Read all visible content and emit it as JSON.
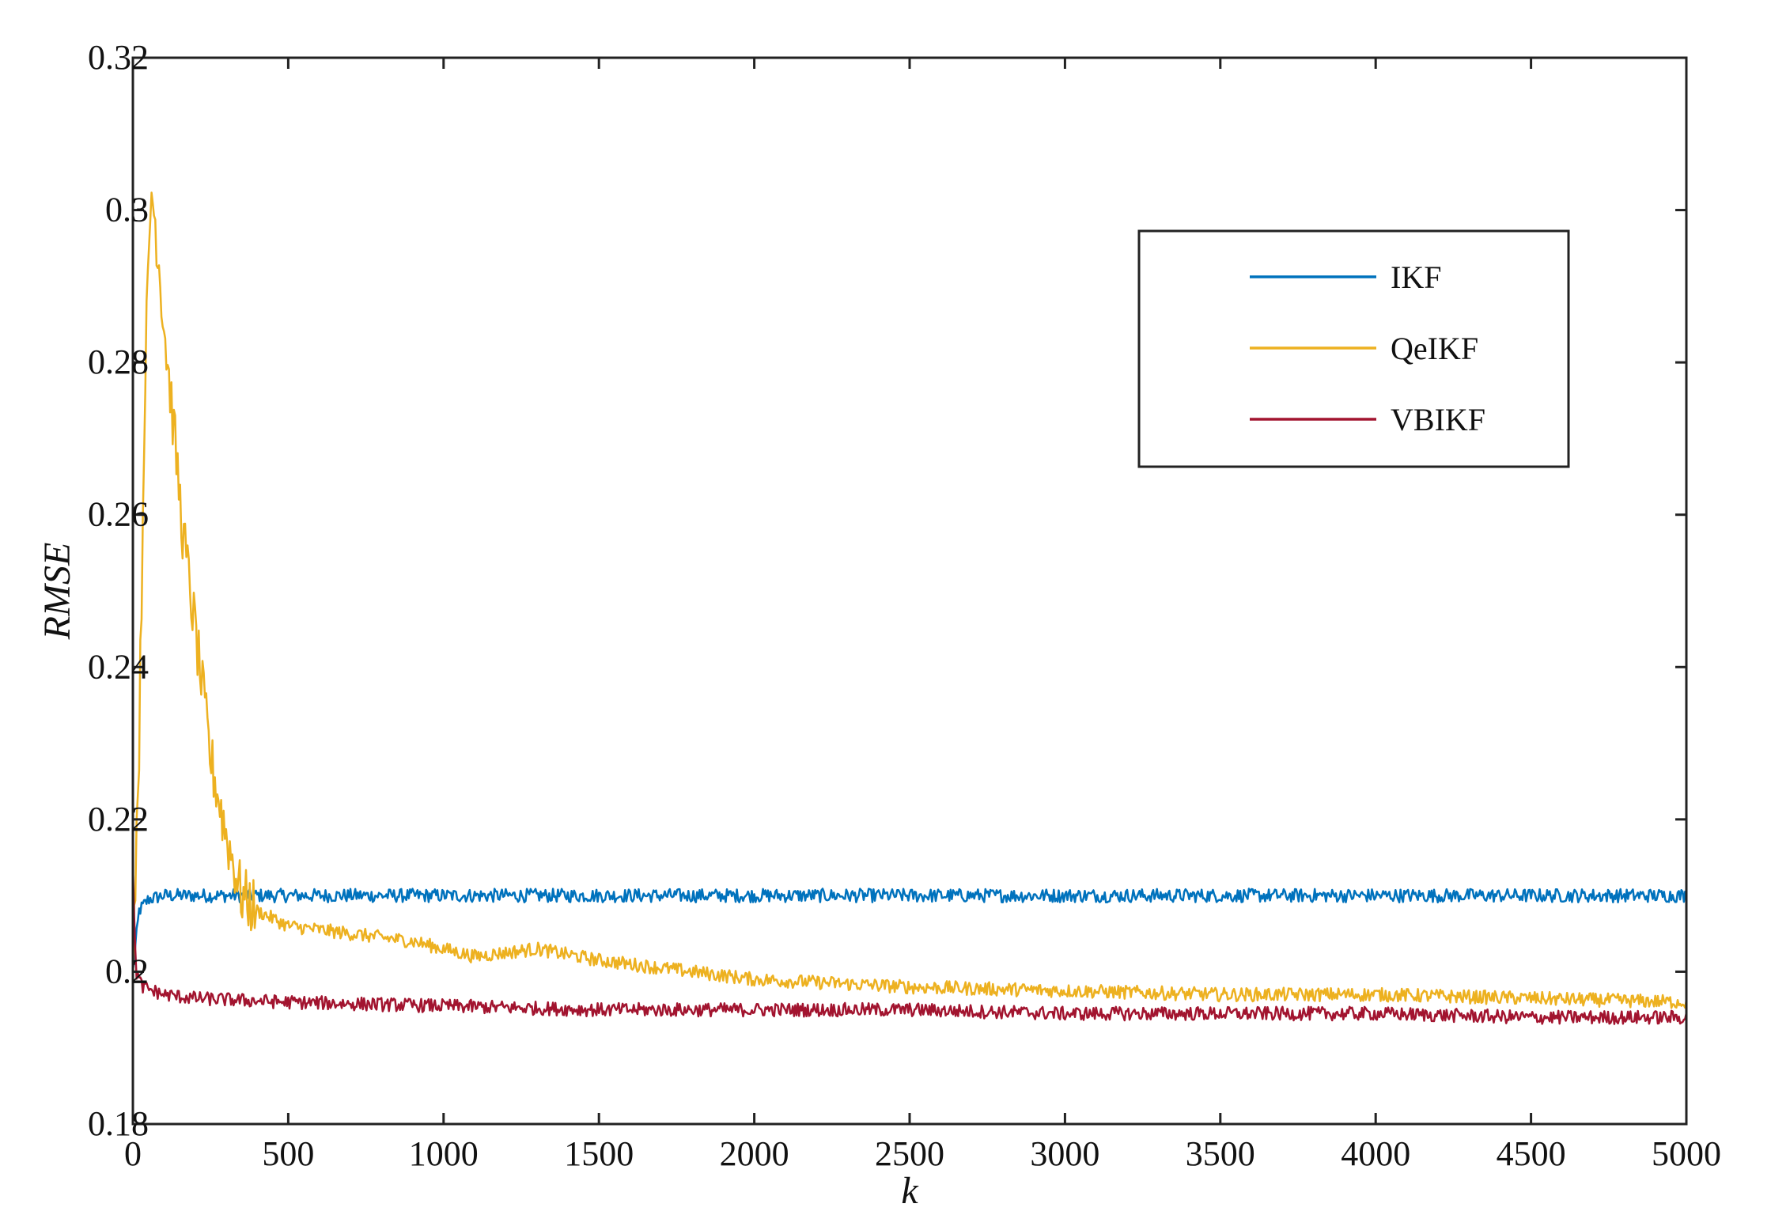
{
  "chart_data": {
    "type": "line",
    "title": "",
    "xlabel": "k",
    "ylabel": "RMSE",
    "xlim": [
      0,
      5000
    ],
    "ylim": [
      0.18,
      0.32
    ],
    "x_ticks": [
      0,
      500,
      1000,
      1500,
      2000,
      2500,
      3000,
      3500,
      4000,
      4500,
      5000
    ],
    "y_ticks": [
      0.18,
      0.2,
      0.22,
      0.24,
      0.26,
      0.28,
      0.3,
      0.32
    ],
    "x_tick_labels": [
      "0",
      "500",
      "1000",
      "1500",
      "2000",
      "2500",
      "3000",
      "3500",
      "4000",
      "4500",
      "5000"
    ],
    "y_tick_labels": [
      "0.18",
      "0.2",
      "0.22",
      "0.24",
      "0.26",
      "0.28",
      "0.3",
      "0.32"
    ],
    "grid": false,
    "legend_position": "top-right",
    "series": [
      {
        "name": "IKF",
        "color": "#0072BD",
        "x": [
          0,
          20,
          50,
          100,
          200,
          500,
          1000,
          1500,
          2000,
          2500,
          3000,
          3500,
          4000,
          4500,
          5000
        ],
        "y": [
          0.2,
          0.208,
          0.2095,
          0.21,
          0.21,
          0.21,
          0.21,
          0.21,
          0.21,
          0.21,
          0.21,
          0.21,
          0.21,
          0.21,
          0.21
        ]
      },
      {
        "name": "QeIKF",
        "color": "#EDB120",
        "x": [
          0,
          20,
          40,
          60,
          80,
          100,
          130,
          160,
          200,
          250,
          300,
          350,
          400,
          500,
          700,
          900,
          1100,
          1300,
          1500,
          1800,
          2000,
          2500,
          3000,
          3500,
          4000,
          4500,
          5000
        ],
        "y": [
          0.202,
          0.23,
          0.28,
          0.303,
          0.295,
          0.285,
          0.272,
          0.258,
          0.245,
          0.228,
          0.218,
          0.21,
          0.208,
          0.206,
          0.205,
          0.204,
          0.202,
          0.203,
          0.2015,
          0.2,
          0.199,
          0.198,
          0.1975,
          0.197,
          0.197,
          0.1965,
          0.196
        ]
      },
      {
        "name": "VBIKF",
        "color": "#A2142F",
        "x": [
          0,
          10,
          30,
          100,
          200,
          500,
          1000,
          1500,
          2000,
          2500,
          3000,
          3500,
          4000,
          4500,
          5000
        ],
        "y": [
          0.213,
          0.2,
          0.198,
          0.197,
          0.1965,
          0.196,
          0.1955,
          0.195,
          0.195,
          0.195,
          0.1945,
          0.1945,
          0.1945,
          0.194,
          0.194
        ]
      }
    ]
  }
}
